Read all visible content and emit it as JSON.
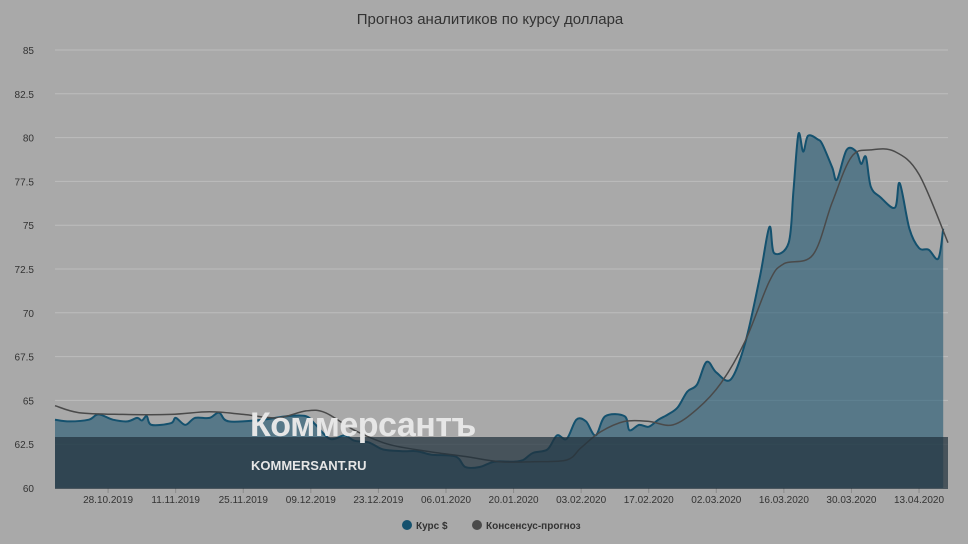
{
  "chart_data": {
    "type": "area",
    "title": "Прогноз аналитиков по курсу доллара",
    "ylim": [
      60,
      85
    ],
    "yticks": [
      "60",
      "62.5",
      "65",
      "67.5",
      "70",
      "72.5",
      "75",
      "77.5",
      "80",
      "82.5",
      "85"
    ],
    "x_range": [
      "2019-10-17",
      "2020-04-19"
    ],
    "xticks": [
      "28.10.2019",
      "11.11.2019",
      "25.11.2019",
      "09.12.2019",
      "23.12.2019",
      "06.01.2020",
      "20.01.2020",
      "03.02.2020",
      "17.02.2020",
      "02.03.2020",
      "16.03.2020",
      "30.03.2020",
      "13.04.2020"
    ],
    "legend_position": "bottom-center",
    "series": [
      {
        "name": "Курс $",
        "type": "area",
        "color": "#14516e",
        "points": [
          [
            "2019-10-17",
            63.9
          ],
          [
            "2019-10-20",
            63.8
          ],
          [
            "2019-10-24",
            63.9
          ],
          [
            "2019-10-26",
            64.2
          ],
          [
            "2019-10-29",
            63.9
          ],
          [
            "2019-11-01",
            63.8
          ],
          [
            "2019-11-03",
            64.0
          ],
          [
            "2019-11-04",
            63.85
          ],
          [
            "2019-11-05",
            64.1
          ],
          [
            "2019-11-06",
            63.6
          ],
          [
            "2019-11-10",
            63.7
          ],
          [
            "2019-11-11",
            64.0
          ],
          [
            "2019-11-13",
            63.6
          ],
          [
            "2019-11-15",
            64.0
          ],
          [
            "2019-11-18",
            64.0
          ],
          [
            "2019-11-20",
            64.3
          ],
          [
            "2019-11-22",
            63.8
          ],
          [
            "2019-11-29",
            63.9
          ],
          [
            "2019-12-04",
            64.1
          ],
          [
            "2019-12-08",
            64.1
          ],
          [
            "2019-12-10",
            63.6
          ],
          [
            "2019-12-13",
            62.8
          ],
          [
            "2019-12-16",
            63.0
          ],
          [
            "2019-12-18",
            62.7
          ],
          [
            "2019-12-21",
            62.6
          ],
          [
            "2019-12-24",
            62.2
          ],
          [
            "2019-12-28",
            62.1
          ],
          [
            "2019-12-31",
            62.1
          ],
          [
            "2020-01-03",
            61.9
          ],
          [
            "2020-01-08",
            61.8
          ],
          [
            "2020-01-10",
            61.2
          ],
          [
            "2020-01-13",
            61.2
          ],
          [
            "2020-01-16",
            61.5
          ],
          [
            "2020-01-20",
            61.5
          ],
          [
            "2020-01-22",
            61.6
          ],
          [
            "2020-01-24",
            62.0
          ],
          [
            "2020-01-27",
            62.2
          ],
          [
            "2020-01-29",
            63.0
          ],
          [
            "2020-01-31",
            62.8
          ],
          [
            "2020-02-02",
            63.9
          ],
          [
            "2020-02-04",
            63.8
          ],
          [
            "2020-02-06",
            63.0
          ],
          [
            "2020-02-08",
            64.1
          ],
          [
            "2020-02-12",
            64.1
          ],
          [
            "2020-02-13",
            63.3
          ],
          [
            "2020-02-15",
            63.6
          ],
          [
            "2020-02-17",
            63.5
          ],
          [
            "2020-02-19",
            63.9
          ],
          [
            "2020-02-21",
            64.2
          ],
          [
            "2020-02-23",
            64.6
          ],
          [
            "2020-02-25",
            65.5
          ],
          [
            "2020-02-27",
            65.9
          ],
          [
            "2020-02-29",
            67.2
          ],
          [
            "2020-03-02",
            66.6
          ],
          [
            "2020-03-05",
            66.2
          ],
          [
            "2020-03-08",
            68.3
          ],
          [
            "2020-03-11",
            72.0
          ],
          [
            "2020-03-13",
            74.9
          ],
          [
            "2020-03-14",
            73.4
          ],
          [
            "2020-03-17",
            74.0
          ],
          [
            "2020-03-18",
            77.0
          ],
          [
            "2020-03-19",
            80.2
          ],
          [
            "2020-03-20",
            79.2
          ],
          [
            "2020-03-21",
            80.1
          ],
          [
            "2020-03-23",
            79.9
          ],
          [
            "2020-03-24",
            79.6
          ],
          [
            "2020-03-26",
            78.3
          ],
          [
            "2020-03-27",
            77.6
          ],
          [
            "2020-03-29",
            79.3
          ],
          [
            "2020-03-31",
            79.2
          ],
          [
            "2020-04-01",
            78.5
          ],
          [
            "2020-04-02",
            78.9
          ],
          [
            "2020-04-03",
            77.2
          ],
          [
            "2020-04-05",
            76.6
          ],
          [
            "2020-04-08",
            76.0
          ],
          [
            "2020-04-09",
            77.4
          ],
          [
            "2020-04-11",
            74.8
          ],
          [
            "2020-04-13",
            73.7
          ],
          [
            "2020-04-15",
            73.6
          ],
          [
            "2020-04-17",
            73.1
          ],
          [
            "2020-04-18",
            74.8
          ]
        ]
      },
      {
        "name": "Консенсус-прогноз",
        "type": "line",
        "color": "#4a4a4a",
        "points": [
          [
            "2019-10-17",
            64.7
          ],
          [
            "2019-10-22",
            64.3
          ],
          [
            "2019-10-31",
            64.2
          ],
          [
            "2019-11-10",
            64.2
          ],
          [
            "2019-11-18",
            64.35
          ],
          [
            "2019-11-25",
            64.2
          ],
          [
            "2019-12-02",
            64.0
          ],
          [
            "2019-12-08",
            64.4
          ],
          [
            "2019-12-12",
            64.3
          ],
          [
            "2019-12-18",
            63.3
          ],
          [
            "2019-12-25",
            62.5
          ],
          [
            "2020-01-02",
            62.1
          ],
          [
            "2020-01-10",
            61.8
          ],
          [
            "2020-01-17",
            61.5
          ],
          [
            "2020-01-24",
            61.5
          ],
          [
            "2020-01-31",
            61.6
          ],
          [
            "2020-02-03",
            62.3
          ],
          [
            "2020-02-07",
            63.2
          ],
          [
            "2020-02-12",
            63.8
          ],
          [
            "2020-02-17",
            63.8
          ],
          [
            "2020-02-22",
            63.6
          ],
          [
            "2020-02-27",
            64.5
          ],
          [
            "2020-03-03",
            66.0
          ],
          [
            "2020-03-08",
            68.4
          ],
          [
            "2020-03-13",
            71.8
          ],
          [
            "2020-03-16",
            72.8
          ],
          [
            "2020-03-22",
            73.3
          ],
          [
            "2020-03-26",
            76.3
          ],
          [
            "2020-03-30",
            78.9
          ],
          [
            "2020-04-03",
            79.3
          ],
          [
            "2020-04-08",
            79.2
          ],
          [
            "2020-04-13",
            77.9
          ],
          [
            "2020-04-19",
            74.0
          ]
        ]
      }
    ]
  },
  "watermark": {
    "title": "Коммерсантъ",
    "subtitle": "KOMMERSANT.RU"
  }
}
